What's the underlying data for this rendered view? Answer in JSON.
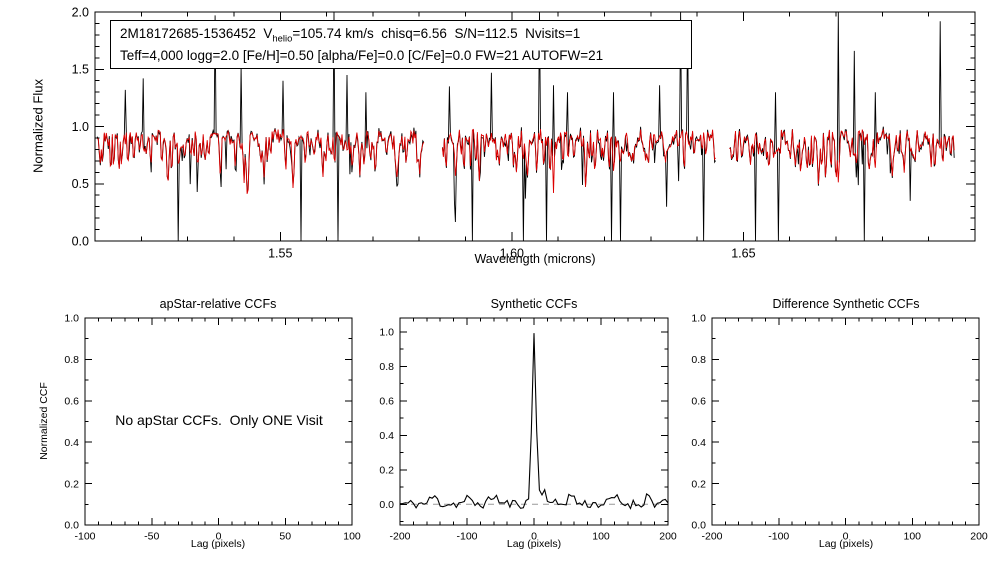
{
  "chart_data": [
    {
      "id": "spectrum",
      "type": "line",
      "title": "",
      "xlabel": "Wavelength (microns)",
      "ylabel": "Normalized Flux",
      "xlim": [
        1.51,
        1.7
      ],
      "ylim": [
        0.0,
        2.0
      ],
      "xticks": [
        {
          "v": 1.55,
          "label": "1.55"
        },
        {
          "v": 1.6,
          "label": "1.60"
        },
        {
          "v": 1.65,
          "label": "1.65"
        }
      ],
      "yticks": [
        {
          "v": 0.0,
          "label": "0.0"
        },
        {
          "v": 0.5,
          "label": "0.5"
        },
        {
          "v": 1.0,
          "label": "1.0"
        },
        {
          "v": 1.5,
          "label": "1.5"
        },
        {
          "v": 2.0,
          "label": "2.0"
        }
      ],
      "series": [
        {
          "name": "observed spectrum",
          "color": "#000000"
        },
        {
          "name": "best-fit synthetic model",
          "color": "#dd0000"
        }
      ],
      "annotation": {
        "line1_prefix": "2M18172685-1536452  V",
        "line1_sub": "helio",
        "line1_suffix": "=105.74 km/s  chisq=6.56  S/N=112.5  Nvisits=1",
        "line2": "Teff=4,000 logg=2.0 [Fe/H]=0.50 [alpha/Fe]=0.0 [C/Fe]=0.0 FW=21 AUTOFW=21"
      },
      "generator": {
        "segments": [
          [
            1.5105,
            1.581
          ],
          [
            1.585,
            1.644
          ],
          [
            1.647,
            1.6955
          ]
        ],
        "baseline": 0.93,
        "band_noise": 0.1,
        "absorption_depth": 0.45,
        "deep_line_chance": 0.08,
        "deep_line_extra": 0.5,
        "seed": 42,
        "up_spikes": [
          [
            1.5165,
            1.32
          ],
          [
            1.5205,
            1.42
          ],
          [
            1.536,
            1.97
          ],
          [
            1.5415,
            1.52
          ],
          [
            1.5505,
            1.4
          ],
          [
            1.5615,
            2.0
          ],
          [
            1.5645,
            1.45
          ],
          [
            1.5685,
            1.3
          ],
          [
            1.5865,
            1.35
          ],
          [
            1.5955,
            1.47
          ],
          [
            1.606,
            2.0
          ],
          [
            1.609,
            1.36
          ],
          [
            1.612,
            1.3
          ],
          [
            1.622,
            1.3
          ],
          [
            1.632,
            1.36
          ],
          [
            1.6365,
            2.0
          ],
          [
            1.638,
            1.9
          ],
          [
            1.657,
            1.3
          ],
          [
            1.6705,
            2.0
          ],
          [
            1.674,
            1.66
          ],
          [
            1.6785,
            1.3
          ],
          [
            1.6925,
            1.92
          ]
        ],
        "down_spikes": [
          [
            1.528,
            0.0
          ],
          [
            1.5545,
            0.0
          ],
          [
            1.5625,
            0.0
          ],
          [
            1.5875,
            0.35
          ],
          [
            1.5915,
            0.0
          ],
          [
            1.6025,
            0.0
          ],
          [
            1.6075,
            0.0
          ],
          [
            1.6215,
            0.0
          ],
          [
            1.6235,
            0.0
          ],
          [
            1.6335,
            0.3
          ],
          [
            1.6415,
            0.0
          ],
          [
            1.6525,
            0.0
          ],
          [
            1.6575,
            0.0
          ],
          [
            1.676,
            0.0
          ],
          [
            1.686,
            0.35
          ]
        ]
      }
    },
    {
      "id": "apstar_ccf",
      "type": "line",
      "title": "apStar-relative CCFs",
      "xlabel": "Lag (pixels)",
      "ylabel": "Normalized CCF",
      "xlim": [
        -100,
        100
      ],
      "ylim": [
        0.0,
        1.0
      ],
      "xticks": [
        {
          "v": -100,
          "label": "-100"
        },
        {
          "v": -50,
          "label": "-50"
        },
        {
          "v": 0,
          "label": "0"
        },
        {
          "v": 50,
          "label": "50"
        },
        {
          "v": 100,
          "label": "100"
        }
      ],
      "yticks": [
        {
          "v": 0.0,
          "label": "0.0"
        },
        {
          "v": 0.2,
          "label": "0.2"
        },
        {
          "v": 0.4,
          "label": "0.4"
        },
        {
          "v": 0.6,
          "label": "0.6"
        },
        {
          "v": 0.8,
          "label": "0.8"
        },
        {
          "v": 1.0,
          "label": "1.0"
        }
      ],
      "message": "No apStar CCFs.  Only ONE Visit",
      "series": []
    },
    {
      "id": "synthetic_ccf",
      "type": "line",
      "title": "Synthetic CCFs",
      "xlabel": "Lag (pixels)",
      "ylabel": "",
      "xlim": [
        -200,
        200
      ],
      "ylim": [
        -0.12,
        1.08
      ],
      "xticks": [
        {
          "v": -200,
          "label": "-200"
        },
        {
          "v": -100,
          "label": "-100"
        },
        {
          "v": 0,
          "label": "0"
        },
        {
          "v": 100,
          "label": "100"
        },
        {
          "v": 200,
          "label": "200"
        }
      ],
      "yticks": [
        {
          "v": 0.0,
          "label": "0.0"
        },
        {
          "v": 0.2,
          "label": "0.2"
        },
        {
          "v": 0.4,
          "label": "0.4"
        },
        {
          "v": 0.6,
          "label": "0.6"
        },
        {
          "v": 0.8,
          "label": "0.8"
        },
        {
          "v": 1.0,
          "label": "1.0"
        }
      ],
      "series": [
        {
          "name": "synthetic CCF",
          "color": "#000000"
        }
      ],
      "generator": {
        "x_start": -200,
        "x_end": 200,
        "step": 4,
        "seed": 11,
        "noise_amp": 0.055,
        "noise_bias": 0.45,
        "peak": {
          "center": 0,
          "height": 1.0,
          "sigma": 3
        },
        "bumps": [
          [
            14,
            0.08,
            5
          ],
          [
            55,
            0.05,
            5
          ],
          [
            120,
            0.04,
            5
          ],
          [
            170,
            0.05,
            4
          ],
          [
            -60,
            0.05,
            5
          ],
          [
            -150,
            0.04,
            5
          ],
          [
            -100,
            0.03,
            4
          ]
        ],
        "zero_line": {
          "y": 0,
          "color": "#999999",
          "dash": "6 5"
        }
      }
    },
    {
      "id": "difference_ccf",
      "type": "line",
      "title": "Difference Synthetic CCFs",
      "xlabel": "Lag (pixels)",
      "ylabel": "",
      "xlim": [
        -200,
        200
      ],
      "ylim": [
        0.0,
        1.0
      ],
      "xticks": [
        {
          "v": -200,
          "label": "-200"
        },
        {
          "v": -100,
          "label": "-100"
        },
        {
          "v": 0,
          "label": "0"
        },
        {
          "v": 100,
          "label": "100"
        },
        {
          "v": 200,
          "label": "200"
        }
      ],
      "yticks": [
        {
          "v": 0.0,
          "label": "0.0"
        },
        {
          "v": 0.2,
          "label": "0.2"
        },
        {
          "v": 0.4,
          "label": "0.4"
        },
        {
          "v": 0.6,
          "label": "0.6"
        },
        {
          "v": 0.8,
          "label": "0.8"
        },
        {
          "v": 1.0,
          "label": "1.0"
        }
      ],
      "series": []
    }
  ]
}
